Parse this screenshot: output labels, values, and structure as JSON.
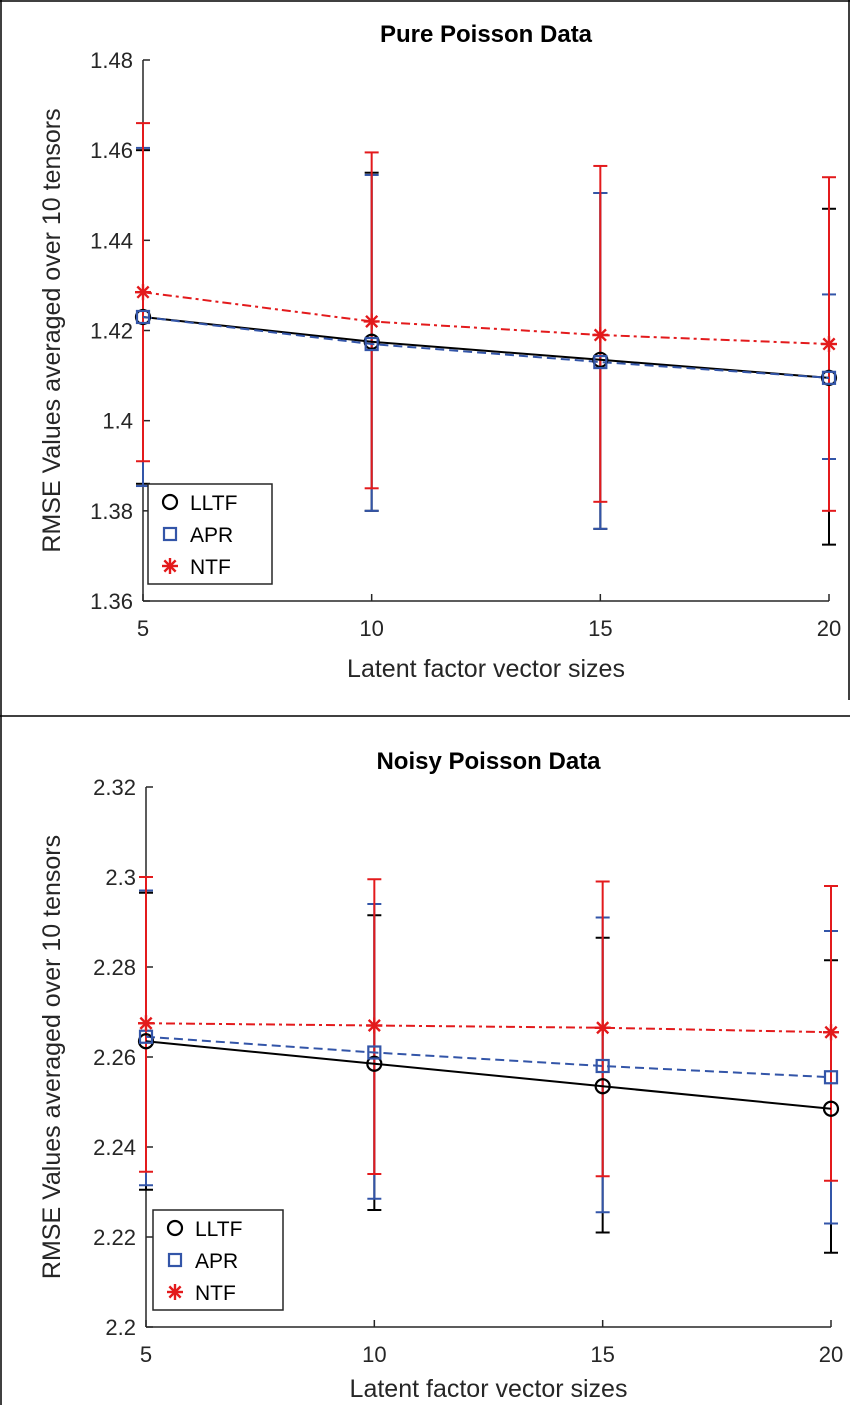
{
  "chart_data": [
    {
      "type": "line",
      "title": "Pure Poisson Data",
      "xlabel": "Latent factor vector sizes",
      "ylabel": "RMSE Values averaged over 10 tensors",
      "x": [
        5,
        10,
        15,
        20
      ],
      "xlim": [
        5,
        20
      ],
      "ylim": [
        1.36,
        1.48
      ],
      "xticks": [
        "5",
        "10",
        "15",
        "20"
      ],
      "yticks": [
        "1.36",
        "1.38",
        "1.4",
        "1.42",
        "1.44",
        "1.46",
        "1.48"
      ],
      "legend_position": "bottom-left",
      "series": [
        {
          "name": "LLTF",
          "color": "#000000",
          "marker": "circle",
          "line": "solid",
          "values": [
            1.423,
            1.4175,
            1.4135,
            1.4095
          ],
          "err_low": [
            1.386,
            1.38,
            1.376,
            1.3725
          ],
          "err_high": [
            1.46,
            1.455,
            1.4505,
            1.447
          ]
        },
        {
          "name": "APR",
          "color": "#3355a8",
          "marker": "square",
          "line": "dashed",
          "values": [
            1.423,
            1.417,
            1.413,
            1.4095
          ],
          "err_low": [
            1.3855,
            1.38,
            1.376,
            1.3915
          ],
          "err_high": [
            1.4605,
            1.4545,
            1.4505,
            1.428
          ]
        },
        {
          "name": "NTF",
          "color": "#e31a1c",
          "marker": "asterisk",
          "line": "dashdot",
          "values": [
            1.4285,
            1.422,
            1.419,
            1.417
          ],
          "err_low": [
            1.391,
            1.385,
            1.382,
            1.38
          ],
          "err_high": [
            1.466,
            1.4595,
            1.4565,
            1.454
          ]
        }
      ]
    },
    {
      "type": "line",
      "title": "Noisy Poisson Data",
      "xlabel": "Latent factor vector sizes",
      "ylabel": "RMSE Values averaged over 10 tensors",
      "x": [
        5,
        10,
        15,
        20
      ],
      "xlim": [
        5,
        20
      ],
      "ylim": [
        2.2,
        2.32
      ],
      "xticks": [
        "5",
        "10",
        "15",
        "20"
      ],
      "yticks": [
        "2.2",
        "2.22",
        "2.24",
        "2.26",
        "2.28",
        "2.3",
        "2.32"
      ],
      "legend_position": "bottom-left",
      "series": [
        {
          "name": "LLTF",
          "color": "#000000",
          "marker": "circle",
          "line": "solid",
          "values": [
            2.2635,
            2.2585,
            2.2535,
            2.2485
          ],
          "err_low": [
            2.2305,
            2.226,
            2.221,
            2.2165
          ],
          "err_high": [
            2.2965,
            2.2915,
            2.2865,
            2.2815
          ]
        },
        {
          "name": "APR",
          "color": "#3355a8",
          "marker": "square",
          "line": "dashed",
          "values": [
            2.2645,
            2.261,
            2.258,
            2.2555
          ],
          "err_low": [
            2.2315,
            2.2285,
            2.2255,
            2.223
          ],
          "err_high": [
            2.297,
            2.294,
            2.291,
            2.288
          ]
        },
        {
          "name": "NTF",
          "color": "#e31a1c",
          "marker": "asterisk",
          "line": "dashdot",
          "values": [
            2.2675,
            2.267,
            2.2665,
            2.2655
          ],
          "err_low": [
            2.2345,
            2.234,
            2.2335,
            2.2325
          ],
          "err_high": [
            2.3,
            2.2995,
            2.299,
            2.298
          ]
        }
      ]
    }
  ]
}
